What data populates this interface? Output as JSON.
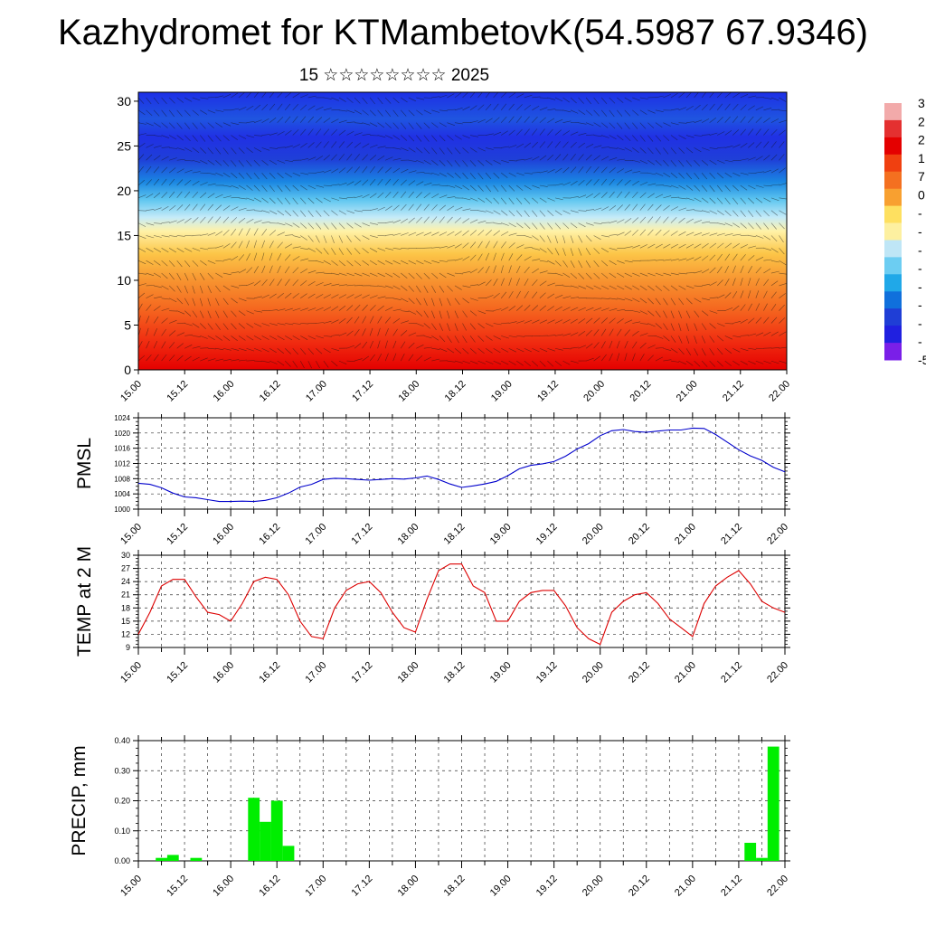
{
  "page": {
    "title": "Kazhydromet for KTMambetovK(54.5987 67.9346)",
    "subtitle": "15 ☆☆☆☆☆☆☆☆ 2025"
  },
  "x_tick_labels": [
    "15.00",
    "15.12",
    "16.00",
    "16.12",
    "17.00",
    "17.12",
    "18.00",
    "18.12",
    "19.00",
    "19.12",
    "20.00",
    "20.12",
    "21.00",
    "21.12",
    "22.00"
  ],
  "colors": {
    "pmsl_line": "#0000cc",
    "temp_line": "#dd0000",
    "precip_bar": "#00ee00"
  },
  "chart_data": [
    {
      "type": "heatmap",
      "name": "temperature-wind cross-section",
      "xlabel": "",
      "ylabel": "",
      "x_range": [
        0,
        168
      ],
      "ylim": [
        0,
        31
      ],
      "y_ticks": [
        0,
        5,
        10,
        15,
        20,
        25,
        30
      ],
      "colorbar": {
        "labels": [
          "3",
          "2",
          "2",
          "1",
          "7",
          "0",
          "-",
          "-",
          "-",
          "-",
          "-",
          "-",
          "-",
          "-",
          "-5"
        ],
        "colors": [
          "#f2aaaa",
          "#e43030",
          "#e40000",
          "#f04010",
          "#f47020",
          "#f8a030",
          "#fee060",
          "#fdf0a0",
          "#bfe6f6",
          "#6ccdf2",
          "#20a8e8",
          "#1070dc",
          "#1f3ed6",
          "#2020e0",
          "#7a1fe8"
        ]
      },
      "profile": [
        {
          "h": 0,
          "c": "#e40000"
        },
        {
          "h": 3,
          "c": "#f02a10"
        },
        {
          "h": 7,
          "c": "#f56a20"
        },
        {
          "h": 10,
          "c": "#f79430"
        },
        {
          "h": 13,
          "c": "#fcc648"
        },
        {
          "h": 15.5,
          "c": "#fff2a8"
        },
        {
          "h": 17,
          "c": "#c6ebf8"
        },
        {
          "h": 19,
          "c": "#5ec6f0"
        },
        {
          "h": 21,
          "c": "#1a86e2"
        },
        {
          "h": 23.5,
          "c": "#1f3fd8"
        },
        {
          "h": 26,
          "c": "#2030e4"
        },
        {
          "h": 28,
          "c": "#1f55e0"
        },
        {
          "h": 31,
          "c": "#1d2fe6"
        }
      ]
    },
    {
      "type": "line",
      "ylabel": "PMSL",
      "xlabel": "",
      "ylim": [
        1000,
        1024
      ],
      "y_ticks": [
        1000,
        1004,
        1008,
        1012,
        1016,
        1020,
        1024
      ],
      "x_range": [
        0,
        168
      ],
      "series": [
        {
          "x": [
            0,
            3,
            6,
            9,
            12,
            15,
            18,
            21,
            24,
            27,
            30,
            33,
            36,
            39,
            42,
            45,
            48,
            51,
            54,
            57,
            60,
            63,
            66,
            69,
            72,
            75,
            78,
            81,
            84,
            87,
            90,
            93,
            96,
            99,
            102,
            105,
            108,
            111,
            114,
            117,
            120,
            123,
            126,
            129,
            132,
            135,
            138,
            141,
            144,
            147,
            150,
            153,
            156,
            159,
            162,
            165,
            168
          ],
          "values": [
            1006.8,
            1006.5,
            1005.6,
            1004.2,
            1003.2,
            1003.0,
            1002.5,
            1002.0,
            1002.0,
            1002.1,
            1002.0,
            1002.3,
            1003.0,
            1004.2,
            1005.8,
            1006.5,
            1007.8,
            1008.1,
            1008.0,
            1007.8,
            1007.6,
            1007.8,
            1008.0,
            1007.9,
            1008.2,
            1008.7,
            1007.8,
            1006.6,
            1005.7,
            1006.1,
            1006.6,
            1007.3,
            1008.8,
            1010.6,
            1011.5,
            1011.9,
            1012.5,
            1013.9,
            1015.8,
            1017.2,
            1019.3,
            1020.6,
            1020.9,
            1020.4,
            1020.2,
            1020.5,
            1020.8,
            1020.8,
            1021.3,
            1021.2,
            1019.6,
            1017.6,
            1015.6,
            1014.0,
            1012.8,
            1011.0,
            1009.8
          ]
        }
      ]
    },
    {
      "type": "line",
      "ylabel": "TEMP at 2 M",
      "xlabel": "",
      "ylim": [
        9,
        30
      ],
      "y_ticks": [
        9,
        12,
        15,
        18,
        21,
        24,
        27,
        30
      ],
      "x_range": [
        0,
        168
      ],
      "series": [
        {
          "x": [
            0,
            3,
            6,
            9,
            12,
            15,
            18,
            21,
            24,
            27,
            30,
            33,
            36,
            39,
            42,
            45,
            48,
            51,
            54,
            57,
            60,
            63,
            66,
            69,
            72,
            75,
            78,
            81,
            84,
            87,
            90,
            93,
            96,
            99,
            102,
            105,
            108,
            111,
            114,
            117,
            120,
            123,
            126,
            129,
            132,
            135,
            138,
            141,
            144,
            147,
            150,
            153,
            156,
            159,
            162,
            165,
            168
          ],
          "values": [
            12.0,
            17.0,
            23.0,
            24.5,
            24.5,
            20.5,
            17.0,
            16.5,
            15.0,
            19.0,
            24.0,
            25.0,
            24.5,
            21.0,
            15.0,
            11.5,
            11.0,
            18.0,
            22.0,
            23.5,
            24.0,
            21.5,
            17.0,
            13.5,
            12.5,
            20.0,
            26.5,
            28.0,
            28.0,
            23.0,
            21.5,
            15.0,
            15.0,
            19.5,
            21.5,
            22.0,
            22.0,
            18.5,
            13.5,
            11.0,
            9.7,
            17.0,
            19.5,
            21.0,
            21.5,
            19.0,
            15.5,
            13.5,
            11.5,
            19.0,
            23.0,
            25.0,
            26.5,
            23.5,
            19.5,
            18.0,
            17.0
          ]
        }
      ]
    },
    {
      "type": "bar",
      "ylabel": "PRECIP, mm",
      "xlabel": "",
      "ylim": [
        0,
        0.4
      ],
      "y_ticks": [
        "0.00",
        "0.10",
        "0.20",
        "0.30",
        "0.40"
      ],
      "x_range": [
        0,
        168
      ],
      "bar_width_hours": 3,
      "bars": [
        {
          "x": 6,
          "value": 0.01
        },
        {
          "x": 9,
          "value": 0.02
        },
        {
          "x": 15,
          "value": 0.01
        },
        {
          "x": 30,
          "value": 0.21
        },
        {
          "x": 33,
          "value": 0.13
        },
        {
          "x": 36,
          "value": 0.2
        },
        {
          "x": 39,
          "value": 0.05
        },
        {
          "x": 159,
          "value": 0.06
        },
        {
          "x": 162,
          "value": 0.01
        },
        {
          "x": 165,
          "value": 0.38
        }
      ]
    }
  ]
}
